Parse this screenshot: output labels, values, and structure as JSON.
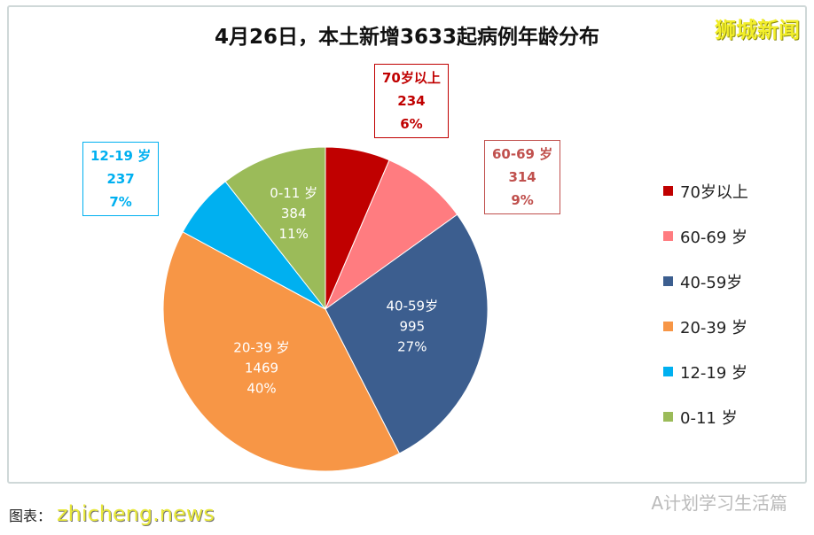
{
  "title": "4月26日，本土新增3633起病例年龄分布",
  "logo": "狮城新闻",
  "footer": {
    "source_label": "图表：",
    "watermark": "zhicheng.news",
    "wechat": "A计划学习生活篇"
  },
  "chart_data": {
    "type": "pie",
    "title": "4月26日，本土新增3633起病例年龄分布",
    "start": "top",
    "direction": "clockwise",
    "legend_placement": "right",
    "slices": [
      {
        "label": "70岁以上",
        "value": 234,
        "percent": "6%",
        "color": "#c00000",
        "legend": "70岁以上"
      },
      {
        "label": "60-69 岁",
        "value": 314,
        "percent": "9%",
        "color": "#ff7c80",
        "legend": "60-69 岁"
      },
      {
        "label": "40-59岁",
        "value": 995,
        "percent": "27%",
        "color": "#3c5e8f",
        "legend": "40-59岁"
      },
      {
        "label": "20-39 岁",
        "value": 1469,
        "percent": "40%",
        "color": "#f79646",
        "legend": "20-39 岁"
      },
      {
        "label": "12-19 岁",
        "value": 237,
        "percent": "7%",
        "color": "#00b0f0",
        "legend": "12-19 岁"
      },
      {
        "label": "0-11 岁",
        "value": 384,
        "percent": "11%",
        "color": "#9bbb59",
        "legend": "0-11 岁"
      }
    ]
  }
}
